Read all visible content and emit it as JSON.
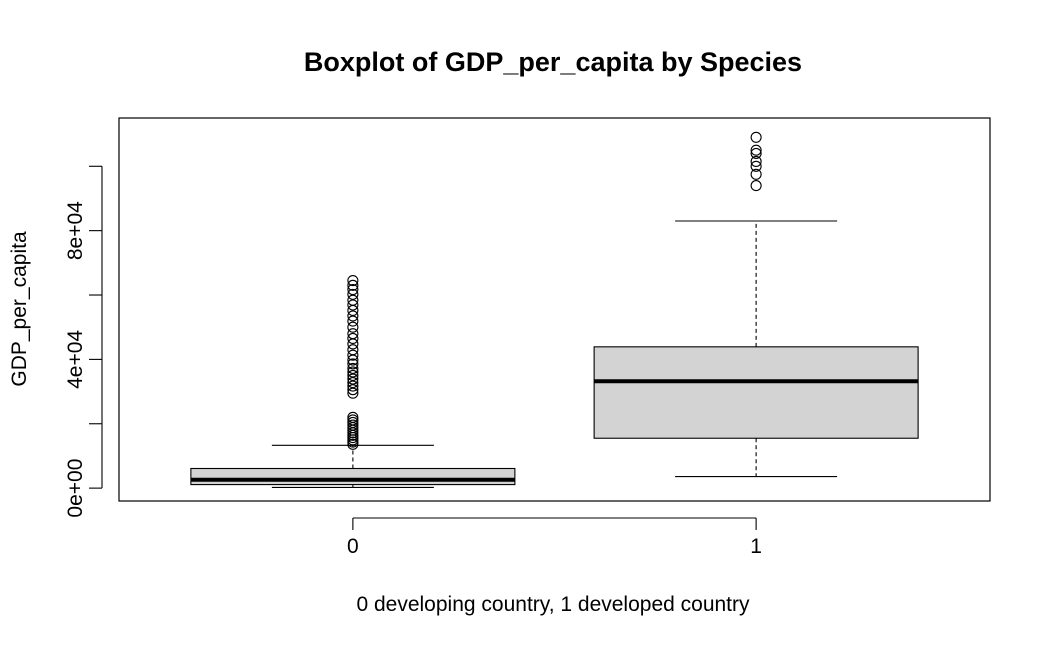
{
  "chart_data": {
    "type": "boxplot",
    "title": "Boxplot of GDP_per_capita by Species",
    "xlabel": "0 developing country, 1 developed country",
    "ylabel": "GDP_per_capita",
    "categories": [
      "0",
      "1"
    ],
    "ylim": [
      -4000,
      115000
    ],
    "y_ticks": [
      {
        "value": 0,
        "label": "0e+00"
      },
      {
        "value": 20000,
        "label": ""
      },
      {
        "value": 40000,
        "label": "4e+04"
      },
      {
        "value": 60000,
        "label": ""
      },
      {
        "value": 80000,
        "label": "8e+04"
      },
      {
        "value": 100000,
        "label": ""
      }
    ],
    "grid": false,
    "box_fill": "#d3d3d3",
    "stroke": "#000000",
    "boxes": [
      {
        "category": "0",
        "whisker_low": 200,
        "q1": 1100,
        "median": 2600,
        "q3": 6100,
        "whisker_high": 13300,
        "outliers": [
          13600,
          14300,
          15000,
          15700,
          16400,
          17200,
          18000,
          18800,
          19600,
          20400,
          21200,
          22000,
          29500,
          30600,
          31700,
          32800,
          33900,
          35000,
          36100,
          37200,
          38600,
          39800,
          41300,
          43000,
          44800,
          46500,
          48000,
          50000,
          51900,
          53500,
          55200,
          56900,
          58400,
          60200,
          61700,
          63000,
          64500
        ]
      },
      {
        "category": "1",
        "whisker_low": 3600,
        "q1": 15500,
        "median": 33200,
        "q3": 43900,
        "whisker_high": 83000,
        "outliers": [
          94000,
          97500,
          100000,
          101500,
          104000,
          105000,
          109000
        ]
      }
    ]
  }
}
